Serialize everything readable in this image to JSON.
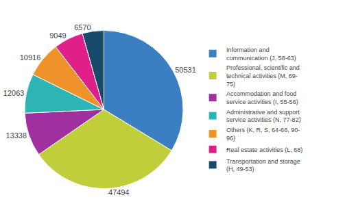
{
  "chart_data": {
    "type": "pie",
    "categories": [
      "Information and\ncommunication (J, 58-63)",
      "Professional, scientific and\ntechnical activities (M, 69-\n75)",
      "Accommodation and food\nservice activities (I, 55-56)",
      "Administrative and support\nservice activities (N, 77-82)",
      "Others (K, R, S, 64-66, 90-\n96)",
      "Real estate activities (L, 68)",
      "Transportation and storage\n(H, 49-53)"
    ],
    "values": [
      50531,
      47494,
      13338,
      12063,
      10916,
      9049,
      6570
    ],
    "colors": [
      "#3a7fc1",
      "#bfce3a",
      "#a030a0",
      "#2db5b5",
      "#f0922a",
      "#e0208a",
      "#1a4a6a"
    ],
    "data_labels": true,
    "legend": "right"
  }
}
